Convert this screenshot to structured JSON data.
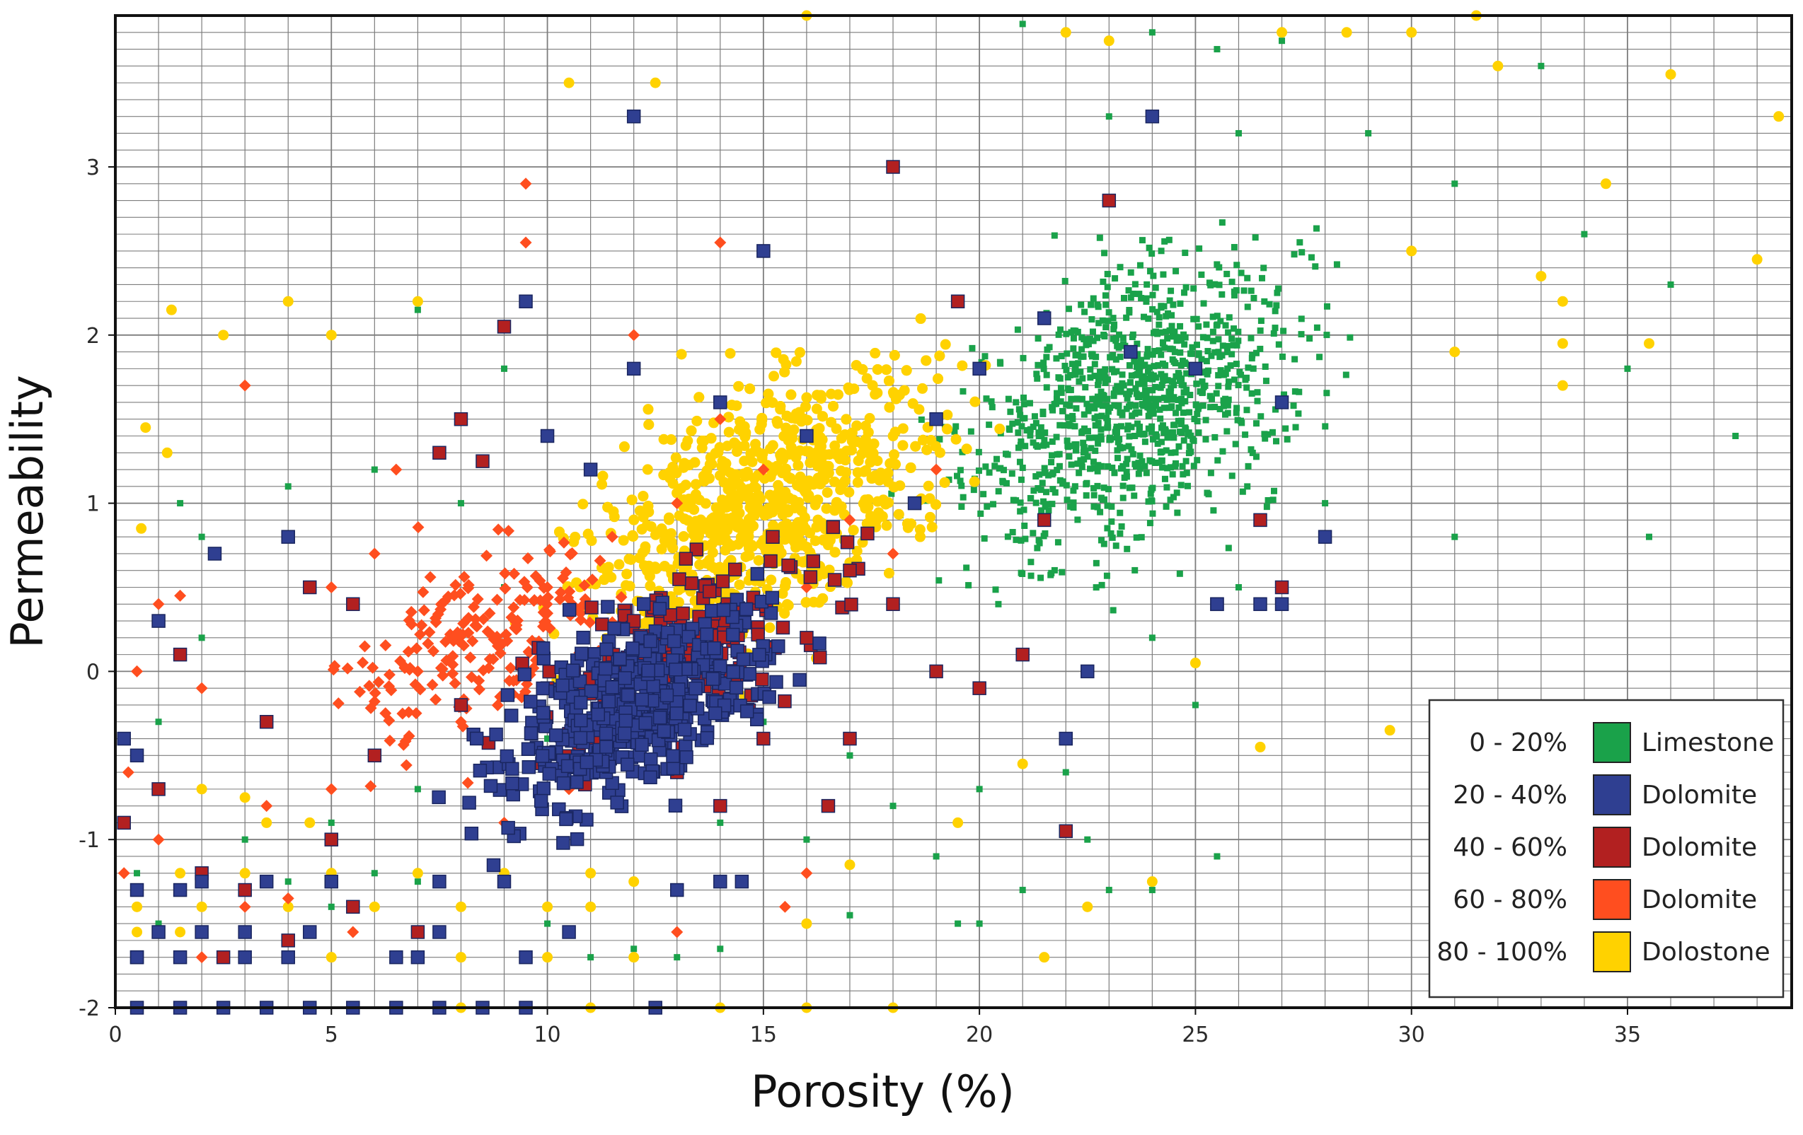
{
  "chart_data": {
    "type": "scatter",
    "xlabel": "Porosity (%)",
    "ylabel": "Permeability",
    "xlim": [
      0,
      38.8
    ],
    "ylim": [
      -2,
      3.9
    ],
    "x_ticks": [
      "0",
      "5",
      "10",
      "15",
      "20",
      "25",
      "30",
      "35"
    ],
    "y_ticks": [
      "-2",
      "-1",
      "0",
      "1",
      "2",
      "3"
    ],
    "grid": true,
    "legend_position": "bottom-right",
    "series": [
      {
        "range": "0 - 20%",
        "lithology": "Limestone",
        "color": "#1aa24a",
        "marker": "small-square",
        "cluster": {
          "center": [
            23.5,
            1.6
          ],
          "spread": [
            6.5,
            1.3
          ],
          "count": 1000
        },
        "points": [
          [
            21,
            3.85
          ],
          [
            24,
            3.8
          ],
          [
            25.5,
            3.7
          ],
          [
            27,
            3.75
          ],
          [
            28.5,
            3.8
          ],
          [
            33,
            3.6
          ],
          [
            23,
            3.3
          ],
          [
            26,
            3.2
          ],
          [
            29,
            3.2
          ],
          [
            31,
            2.9
          ],
          [
            34,
            2.6
          ],
          [
            36,
            2.3
          ],
          [
            35,
            1.8
          ],
          [
            37.5,
            1.4
          ],
          [
            35.5,
            0.8
          ],
          [
            31,
            0.8
          ],
          [
            28,
            1.0
          ],
          [
            26,
            0.5
          ],
          [
            24,
            0.2
          ],
          [
            25,
            -0.2
          ],
          [
            22,
            -0.6
          ],
          [
            20,
            -0.7
          ],
          [
            19,
            -1.1
          ],
          [
            21,
            -1.3
          ],
          [
            23,
            -1.3
          ],
          [
            24,
            -1.3
          ],
          [
            25.5,
            -1.1
          ],
          [
            19.5,
            -1.5
          ],
          [
            17,
            -1.45
          ],
          [
            14,
            -1.65
          ],
          [
            13,
            -1.7
          ],
          [
            12,
            -1.65
          ],
          [
            11,
            -1.7
          ],
          [
            10,
            -1.5
          ],
          [
            9,
            -1.2
          ],
          [
            8,
            -1.4
          ],
          [
            7,
            -1.25
          ],
          [
            6,
            -1.2
          ],
          [
            5,
            -1.4
          ],
          [
            4,
            -1.25
          ],
          [
            3,
            -1.2
          ],
          [
            2,
            -1.4
          ],
          [
            1,
            -1.5
          ],
          [
            0.5,
            -1.2
          ],
          [
            1.5,
            1.0
          ],
          [
            2,
            0.8
          ],
          [
            4,
            1.1
          ],
          [
            6,
            1.2
          ],
          [
            8,
            1.0
          ],
          [
            9,
            0.5
          ],
          [
            11,
            0.3
          ],
          [
            13,
            0.0
          ],
          [
            15,
            -0.3
          ],
          [
            17,
            -0.5
          ],
          [
            18,
            -0.8
          ],
          [
            16,
            -1.0
          ],
          [
            14,
            -0.9
          ],
          [
            12,
            -0.6
          ],
          [
            10,
            -0.4
          ],
          [
            7,
            -0.7
          ],
          [
            5,
            -0.9
          ],
          [
            3,
            -1.0
          ],
          [
            1,
            -0.3
          ],
          [
            2,
            0.2
          ],
          [
            20,
            -1.5
          ],
          [
            22.5,
            -1.0
          ],
          [
            7,
            2.15
          ],
          [
            9,
            1.8
          ]
        ]
      },
      {
        "range": "20 - 40%",
        "lithology": "Dolomite",
        "color": "#2f3f91",
        "marker": "square",
        "cluster": {
          "center": [
            12.0,
            -0.2
          ],
          "spread": [
            5.5,
            0.8
          ],
          "count": 450
        },
        "points": [
          [
            12,
            3.3
          ],
          [
            24,
            3.3
          ],
          [
            9.5,
            2.2
          ],
          [
            15,
            2.5
          ],
          [
            21.5,
            2.1
          ],
          [
            23.5,
            1.9
          ],
          [
            25,
            1.8
          ],
          [
            27,
            1.6
          ],
          [
            28,
            0.8
          ],
          [
            27,
            0.4
          ],
          [
            26.5,
            0.4
          ],
          [
            25.5,
            0.4
          ],
          [
            22.5,
            0.0
          ],
          [
            22,
            -0.4
          ],
          [
            4,
            0.8
          ],
          [
            2.3,
            0.7
          ],
          [
            1,
            0.3
          ],
          [
            0.5,
            -0.5
          ],
          [
            0.2,
            -0.4
          ],
          [
            19,
            1.5
          ],
          [
            20,
            1.8
          ],
          [
            18.5,
            1.0
          ],
          [
            16,
            1.4
          ],
          [
            14,
            1.6
          ],
          [
            12,
            1.8
          ],
          [
            10,
            1.4
          ],
          [
            11,
            1.2
          ],
          [
            0.5,
            -2.0
          ],
          [
            1.5,
            -2.0
          ],
          [
            2.5,
            -2.0
          ],
          [
            3.5,
            -2.0
          ],
          [
            4.5,
            -2.0
          ],
          [
            5.5,
            -2.0
          ],
          [
            6.5,
            -2.0
          ],
          [
            7.5,
            -2.0
          ],
          [
            8.5,
            -2.0
          ],
          [
            9.5,
            -2.0
          ],
          [
            12.5,
            -2.0
          ],
          [
            0.5,
            -1.7
          ],
          [
            1.5,
            -1.7
          ],
          [
            3,
            -1.7
          ],
          [
            4,
            -1.7
          ],
          [
            6.5,
            -1.7
          ],
          [
            7,
            -1.7
          ],
          [
            9.5,
            -1.7
          ],
          [
            1,
            -1.55
          ],
          [
            2,
            -1.55
          ],
          [
            3,
            -1.55
          ],
          [
            4.5,
            -1.55
          ],
          [
            7.5,
            -1.55
          ],
          [
            10.5,
            -1.55
          ],
          [
            0.5,
            -1.3
          ],
          [
            1.5,
            -1.3
          ],
          [
            2,
            -1.25
          ],
          [
            3.5,
            -1.25
          ],
          [
            5,
            -1.25
          ],
          [
            7.5,
            -1.25
          ],
          [
            9,
            -1.25
          ],
          [
            13,
            -1.3
          ],
          [
            14,
            -1.25
          ],
          [
            14.5,
            -1.25
          ]
        ]
      },
      {
        "range": "40 - 60%",
        "lithology": "Dolomite",
        "color": "#b22020",
        "marker": "square",
        "cluster": {
          "center": [
            13.0,
            0.1
          ],
          "spread": [
            6.0,
            0.9
          ],
          "count": 180
        },
        "points": [
          [
            9,
            2.05
          ],
          [
            8,
            1.5
          ],
          [
            8.5,
            1.25
          ],
          [
            7.5,
            1.3
          ],
          [
            18,
            3.0
          ],
          [
            23,
            2.8
          ],
          [
            19.5,
            2.2
          ],
          [
            22,
            -0.95
          ],
          [
            26.5,
            0.9
          ],
          [
            25.5,
            0.4
          ],
          [
            27,
            0.5
          ],
          [
            0.2,
            -0.9
          ],
          [
            1,
            -0.7
          ],
          [
            1.5,
            0.1
          ],
          [
            3.5,
            -0.3
          ],
          [
            4.5,
            0.5
          ],
          [
            5.5,
            0.4
          ],
          [
            2,
            -1.2
          ],
          [
            3,
            -1.3
          ],
          [
            5,
            -1.0
          ],
          [
            6,
            -0.5
          ],
          [
            8,
            -0.2
          ],
          [
            10,
            -0.1
          ],
          [
            11,
            0.1
          ],
          [
            12,
            0.3
          ],
          [
            13,
            -0.6
          ],
          [
            14,
            -0.8
          ],
          [
            16,
            0.2
          ],
          [
            17,
            0.6
          ],
          [
            18,
            0.4
          ],
          [
            19,
            0.0
          ],
          [
            20,
            -0.1
          ],
          [
            21,
            0.1
          ],
          [
            21.5,
            0.9
          ],
          [
            17,
            -0.4
          ],
          [
            15,
            -0.4
          ],
          [
            16.5,
            -0.8
          ],
          [
            4,
            -1.6
          ],
          [
            5.5,
            -1.4
          ],
          [
            7,
            -1.55
          ],
          [
            0.5,
            -1.7
          ],
          [
            2.5,
            -1.7
          ]
        ]
      },
      {
        "range": "60 - 80%",
        "lithology": "Dolomite",
        "color": "#ff4e1f",
        "marker": "diamond",
        "cluster": {
          "center": [
            8.5,
            0.2
          ],
          "spread": [
            5.5,
            0.9
          ],
          "count": 200
        },
        "points": [
          [
            9.5,
            2.9
          ],
          [
            9.5,
            2.55
          ],
          [
            14,
            2.55
          ],
          [
            12,
            2.0
          ],
          [
            3,
            1.7
          ],
          [
            5,
            0.5
          ],
          [
            6.5,
            1.2
          ],
          [
            6,
            0.7
          ],
          [
            0.5,
            0.0
          ],
          [
            1,
            0.4
          ],
          [
            1.5,
            0.45
          ],
          [
            2,
            -0.1
          ],
          [
            0.3,
            -0.6
          ],
          [
            1,
            -1.0
          ],
          [
            0.2,
            -1.2
          ],
          [
            3,
            -1.4
          ],
          [
            4,
            -1.35
          ],
          [
            5,
            -0.7
          ],
          [
            15.5,
            -1.4
          ],
          [
            16,
            -1.2
          ],
          [
            13,
            -1.55
          ],
          [
            5.5,
            -1.55
          ],
          [
            3,
            -1.7
          ],
          [
            2,
            -1.7
          ],
          [
            10,
            0.5
          ],
          [
            11.5,
            0.8
          ],
          [
            13,
            1.0
          ],
          [
            14,
            1.5
          ],
          [
            15,
            1.2
          ],
          [
            12.5,
            0.2
          ],
          [
            10.5,
            -0.7
          ],
          [
            7,
            0.0
          ],
          [
            8,
            -0.3
          ],
          [
            9,
            -0.9
          ],
          [
            3.5,
            -0.8
          ],
          [
            17,
            0.9
          ],
          [
            18,
            0.7
          ],
          [
            19,
            1.2
          ],
          [
            16,
            0.5
          ]
        ]
      },
      {
        "range": "80 - 100%",
        "lithology": "Dolostone",
        "color": "#ffd200",
        "marker": "circle",
        "cluster": {
          "center": [
            15.0,
            1.0
          ],
          "spread": [
            7.0,
            1.2
          ],
          "count": 1200
        },
        "points": [
          [
            10.5,
            3.5
          ],
          [
            12.5,
            3.5
          ],
          [
            16,
            3.9
          ],
          [
            22,
            3.8
          ],
          [
            23,
            3.75
          ],
          [
            27,
            3.8
          ],
          [
            28.5,
            3.8
          ],
          [
            30,
            3.8
          ],
          [
            31.5,
            3.9
          ],
          [
            32,
            3.6
          ],
          [
            36,
            3.55
          ],
          [
            38.5,
            3.3
          ],
          [
            34.5,
            2.9
          ],
          [
            38,
            2.45
          ],
          [
            33,
            2.35
          ],
          [
            33.5,
            2.2
          ],
          [
            33.5,
            1.95
          ],
          [
            35.5,
            1.95
          ],
          [
            33.5,
            1.7
          ],
          [
            31,
            1.9
          ],
          [
            30,
            2.5
          ],
          [
            1.3,
            2.15
          ],
          [
            4,
            2.2
          ],
          [
            2.5,
            2.0
          ],
          [
            5,
            2.0
          ],
          [
            7,
            2.2
          ],
          [
            0.7,
            1.45
          ],
          [
            1.2,
            1.3
          ],
          [
            0.6,
            0.85
          ],
          [
            29.5,
            -0.35
          ],
          [
            26.5,
            -0.45
          ],
          [
            25,
            0.05
          ],
          [
            21,
            -0.55
          ],
          [
            19.5,
            -0.9
          ],
          [
            17,
            -1.15
          ],
          [
            24,
            -1.25
          ],
          [
            22.5,
            -1.4
          ],
          [
            21.5,
            -1.7
          ],
          [
            16,
            -1.5
          ],
          [
            12,
            -1.7
          ],
          [
            10,
            -1.7
          ],
          [
            8,
            -1.7
          ],
          [
            5,
            -1.7
          ],
          [
            4,
            -1.7
          ],
          [
            2.5,
            -1.7
          ],
          [
            1.5,
            -1.55
          ],
          [
            0.5,
            -1.55
          ],
          [
            3,
            -0.75
          ],
          [
            3.5,
            -0.9
          ],
          [
            4.5,
            -0.9
          ],
          [
            6,
            -0.5
          ],
          [
            2,
            -0.7
          ],
          [
            3,
            -1.2
          ],
          [
            5,
            -1.2
          ],
          [
            7,
            -1.2
          ],
          [
            9,
            -1.2
          ],
          [
            11,
            -1.2
          ],
          [
            12,
            -1.25
          ],
          [
            1.5,
            -1.2
          ],
          [
            0.5,
            -1.4
          ],
          [
            2,
            -1.4
          ],
          [
            4,
            -1.4
          ],
          [
            6,
            -1.4
          ],
          [
            8,
            -1.4
          ],
          [
            10,
            -1.4
          ],
          [
            11,
            -1.4
          ],
          [
            5.5,
            -2.0
          ],
          [
            8,
            -2.0
          ],
          [
            11,
            -2.0
          ],
          [
            14,
            -2.0
          ],
          [
            16,
            -2.0
          ],
          [
            18,
            -2.0
          ]
        ]
      }
    ]
  }
}
